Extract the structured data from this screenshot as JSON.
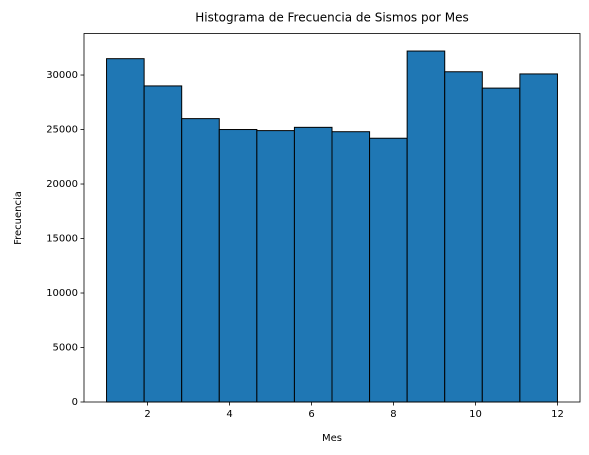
{
  "chart_data": {
    "type": "histogram",
    "title": "Histograma de Frecuencia de Sismos por Mes",
    "x_label": "Mes",
    "y_label": "Frecuencia",
    "bins": [
      1,
      1.9167,
      2.8333,
      3.75,
      4.6667,
      5.5833,
      6.5,
      7.4167,
      8.3333,
      9.25,
      10.1667,
      11.0833,
      12
    ],
    "values": [
      31500,
      29000,
      26000,
      25000,
      24900,
      25200,
      24800,
      24200,
      32200,
      30300,
      28800,
      30100
    ],
    "color": "#1f77b4",
    "edgecolor": "#000000",
    "xlim": [
      0.45,
      12.55
    ],
    "ylim": [
      0,
      33810
    ],
    "xticks": [
      2,
      4,
      6,
      8,
      10,
      12
    ],
    "yticks": [
      0,
      5000,
      10000,
      15000,
      20000,
      25000,
      30000
    ],
    "grid": false
  }
}
